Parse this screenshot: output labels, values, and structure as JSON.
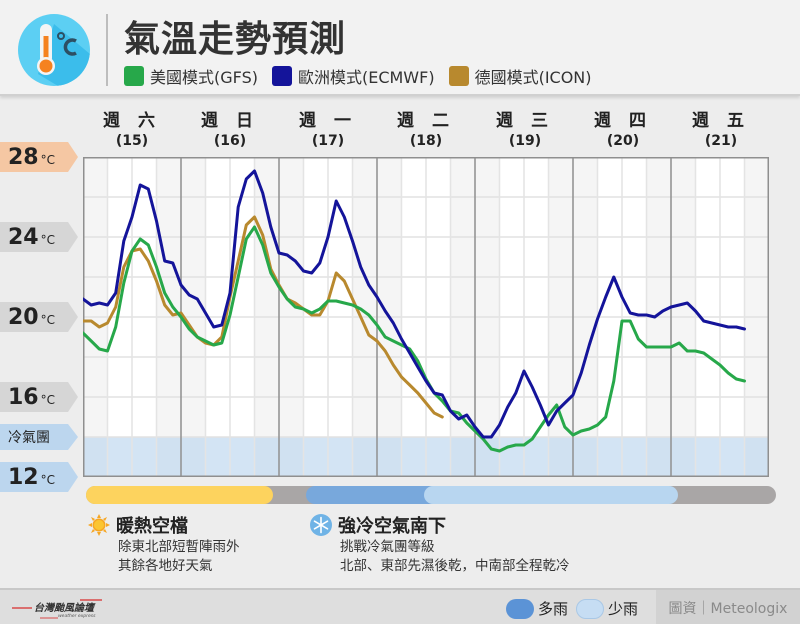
{
  "header": {
    "title": "氣溫走勢預測",
    "icon": "thermometer-celsius-icon",
    "legend": [
      {
        "label": "美國模式(GFS)",
        "color": "#27a84a"
      },
      {
        "label": "歐洲模式(ECMWF)",
        "color": "#14149a"
      },
      {
        "label": "德國模式(ICON)",
        "color": "#b8892e"
      }
    ]
  },
  "days": [
    {
      "name": "週 六",
      "num": "(15)"
    },
    {
      "name": "週 日",
      "num": "(16)"
    },
    {
      "name": "週 一",
      "num": "(17)"
    },
    {
      "name": "週 二",
      "num": "(18)"
    },
    {
      "name": "週 三",
      "num": "(19)"
    },
    {
      "name": "週 四",
      "num": "(20)"
    },
    {
      "name": "週 五",
      "num": "(21)"
    }
  ],
  "y_axis": [
    {
      "value": "28",
      "unit": "°C",
      "color": "#f5c7a3"
    },
    {
      "value": "24",
      "unit": "°C",
      "color": "#d6d6d6"
    },
    {
      "value": "20",
      "unit": "°C",
      "color": "#d6d6d6"
    },
    {
      "value": "16",
      "unit": "°C",
      "color": "#d6d6d6"
    },
    {
      "value": "冷氣團",
      "unit": "",
      "color": "#bcd6ee"
    },
    {
      "value": "12",
      "unit": "°C",
      "color": "#bcd6ee"
    }
  ],
  "chart_data": {
    "type": "line",
    "title": "氣溫走勢預測",
    "xlabel": "",
    "ylabel": "°C",
    "ylim": [
      12,
      28
    ],
    "y_ticks": [
      12,
      16,
      20,
      24,
      28
    ],
    "grid": true,
    "categories": [
      "週六(15)",
      "週日(16)",
      "週一(17)",
      "週二(18)",
      "週三(19)",
      "週四(20)",
      "週五(21)"
    ],
    "annotations": [
      {
        "label": "冷氣團",
        "range": [
          12,
          14
        ]
      }
    ],
    "x_unit": "hours from start of 週六(15), 24h per day, 168h total",
    "series": [
      {
        "name": "美國模式(GFS)",
        "color": "#27a84a",
        "points": [
          [
            0,
            19.2
          ],
          [
            2,
            18.8
          ],
          [
            4,
            18.4
          ],
          [
            6,
            18.3
          ],
          [
            8,
            19.5
          ],
          [
            10,
            21.7
          ],
          [
            12,
            23.3
          ],
          [
            14,
            23.9
          ],
          [
            16,
            23.6
          ],
          [
            18,
            22.5
          ],
          [
            20,
            21.2
          ],
          [
            22,
            20.5
          ],
          [
            24,
            20.0
          ],
          [
            26,
            19.4
          ],
          [
            28,
            19.0
          ],
          [
            30,
            18.8
          ],
          [
            32,
            18.6
          ],
          [
            34,
            18.7
          ],
          [
            36,
            20.1
          ],
          [
            38,
            22.0
          ],
          [
            40,
            23.9
          ],
          [
            42,
            24.5
          ],
          [
            44,
            23.6
          ],
          [
            46,
            22.2
          ],
          [
            48,
            21.5
          ],
          [
            50,
            20.9
          ],
          [
            52,
            20.5
          ],
          [
            54,
            20.4
          ],
          [
            56,
            20.2
          ],
          [
            58,
            20.4
          ],
          [
            60,
            20.8
          ],
          [
            62,
            20.8
          ],
          [
            64,
            20.7
          ],
          [
            66,
            20.6
          ],
          [
            68,
            20.4
          ],
          [
            70,
            20.1
          ],
          [
            72,
            19.6
          ],
          [
            74,
            19.0
          ],
          [
            76,
            18.8
          ],
          [
            78,
            18.6
          ],
          [
            80,
            18.4
          ],
          [
            82,
            17.8
          ],
          [
            84,
            16.9
          ],
          [
            86,
            16.2
          ],
          [
            88,
            15.8
          ],
          [
            90,
            15.3
          ],
          [
            92,
            15.2
          ],
          [
            94,
            14.7
          ],
          [
            96,
            14.3
          ],
          [
            98,
            13.9
          ],
          [
            100,
            13.4
          ],
          [
            102,
            13.3
          ],
          [
            104,
            13.5
          ],
          [
            106,
            13.6
          ],
          [
            108,
            13.6
          ],
          [
            110,
            13.9
          ],
          [
            112,
            14.5
          ],
          [
            114,
            15.1
          ],
          [
            116,
            15.6
          ],
          [
            118,
            14.5
          ],
          [
            120,
            14.1
          ],
          [
            122,
            14.3
          ],
          [
            124,
            14.4
          ],
          [
            126,
            14.6
          ],
          [
            128,
            15.0
          ],
          [
            130,
            16.8
          ],
          [
            132,
            19.8
          ],
          [
            134,
            19.8
          ],
          [
            136,
            18.9
          ],
          [
            138,
            18.5
          ],
          [
            140,
            18.5
          ],
          [
            142,
            18.5
          ],
          [
            144,
            18.5
          ],
          [
            146,
            18.7
          ],
          [
            148,
            18.3
          ],
          [
            150,
            18.3
          ],
          [
            152,
            18.2
          ],
          [
            154,
            17.9
          ],
          [
            156,
            17.6
          ],
          [
            158,
            17.2
          ],
          [
            160,
            16.9
          ],
          [
            162,
            16.8
          ]
        ]
      },
      {
        "name": "歐洲模式(ECMWF)",
        "color": "#14149a",
        "points": [
          [
            0,
            20.9
          ],
          [
            2,
            20.6
          ],
          [
            4,
            20.7
          ],
          [
            6,
            20.6
          ],
          [
            8,
            21.2
          ],
          [
            10,
            23.8
          ],
          [
            12,
            25.0
          ],
          [
            14,
            26.6
          ],
          [
            16,
            26.4
          ],
          [
            18,
            24.8
          ],
          [
            20,
            22.8
          ],
          [
            22,
            22.7
          ],
          [
            24,
            21.6
          ],
          [
            26,
            21.1
          ],
          [
            28,
            20.9
          ],
          [
            30,
            20.2
          ],
          [
            32,
            19.5
          ],
          [
            34,
            19.6
          ],
          [
            36,
            21.2
          ],
          [
            38,
            25.5
          ],
          [
            40,
            26.9
          ],
          [
            42,
            27.3
          ],
          [
            44,
            26.2
          ],
          [
            46,
            24.5
          ],
          [
            48,
            23.2
          ],
          [
            50,
            23.1
          ],
          [
            52,
            22.8
          ],
          [
            54,
            22.3
          ],
          [
            56,
            22.2
          ],
          [
            58,
            22.7
          ],
          [
            60,
            24.0
          ],
          [
            62,
            25.8
          ],
          [
            64,
            25.0
          ],
          [
            66,
            23.8
          ],
          [
            68,
            22.5
          ],
          [
            70,
            21.6
          ],
          [
            72,
            21.0
          ],
          [
            74,
            20.3
          ],
          [
            76,
            19.7
          ],
          [
            78,
            18.9
          ],
          [
            80,
            18.2
          ],
          [
            82,
            17.5
          ],
          [
            84,
            16.8
          ],
          [
            86,
            16.2
          ],
          [
            88,
            16.1
          ],
          [
            90,
            15.3
          ],
          [
            92,
            14.9
          ],
          [
            94,
            15.1
          ],
          [
            96,
            14.5
          ],
          [
            98,
            14.0
          ],
          [
            100,
            14.0
          ],
          [
            102,
            14.6
          ],
          [
            104,
            15.5
          ],
          [
            106,
            16.2
          ],
          [
            108,
            17.3
          ],
          [
            110,
            16.5
          ],
          [
            112,
            15.6
          ],
          [
            114,
            14.6
          ],
          [
            116,
            15.3
          ],
          [
            118,
            15.7
          ],
          [
            120,
            16.1
          ],
          [
            122,
            17.2
          ],
          [
            124,
            18.6
          ],
          [
            126,
            19.9
          ],
          [
            128,
            21.0
          ],
          [
            130,
            22.0
          ],
          [
            132,
            21.0
          ],
          [
            134,
            20.2
          ],
          [
            136,
            20.1
          ],
          [
            138,
            20.1
          ],
          [
            140,
            20.0
          ],
          [
            142,
            20.3
          ],
          [
            144,
            20.5
          ],
          [
            146,
            20.6
          ],
          [
            148,
            20.7
          ],
          [
            150,
            20.3
          ],
          [
            152,
            19.8
          ],
          [
            154,
            19.7
          ],
          [
            156,
            19.6
          ],
          [
            158,
            19.5
          ],
          [
            160,
            19.5
          ],
          [
            162,
            19.4
          ]
        ]
      },
      {
        "name": "德國模式(ICON)",
        "color": "#b8892e",
        "points": [
          [
            0,
            19.8
          ],
          [
            2,
            19.8
          ],
          [
            4,
            19.5
          ],
          [
            6,
            19.7
          ],
          [
            8,
            20.5
          ],
          [
            10,
            22.5
          ],
          [
            12,
            23.3
          ],
          [
            14,
            23.4
          ],
          [
            16,
            22.8
          ],
          [
            18,
            21.8
          ],
          [
            20,
            20.6
          ],
          [
            22,
            20.1
          ],
          [
            24,
            20.2
          ],
          [
            26,
            19.6
          ],
          [
            28,
            19.0
          ],
          [
            30,
            18.7
          ],
          [
            32,
            18.6
          ],
          [
            34,
            19.0
          ],
          [
            36,
            21.0
          ],
          [
            38,
            22.8
          ],
          [
            40,
            24.6
          ],
          [
            42,
            25.0
          ],
          [
            44,
            24.1
          ],
          [
            46,
            22.4
          ],
          [
            48,
            21.6
          ],
          [
            50,
            20.9
          ],
          [
            52,
            20.7
          ],
          [
            54,
            20.4
          ],
          [
            56,
            20.1
          ],
          [
            58,
            20.1
          ],
          [
            60,
            20.8
          ],
          [
            62,
            22.2
          ],
          [
            64,
            21.8
          ],
          [
            66,
            20.9
          ],
          [
            68,
            20.0
          ],
          [
            70,
            19.1
          ],
          [
            72,
            18.8
          ],
          [
            74,
            18.3
          ],
          [
            76,
            17.6
          ],
          [
            78,
            17.0
          ],
          [
            80,
            16.6
          ],
          [
            82,
            16.2
          ],
          [
            84,
            15.7
          ],
          [
            86,
            15.2
          ],
          [
            88,
            15.0
          ]
        ]
      }
    ]
  },
  "weather_bar": {
    "segments": [
      {
        "label": "warm",
        "color": "#fdd35e"
      },
      {
        "label": "多雨",
        "color": "#78a8dc"
      },
      {
        "label": "少雨",
        "color": "#b8d6f0"
      }
    ]
  },
  "notes": [
    {
      "icon": "sun-icon",
      "title": "暖熱空檔",
      "lines": [
        "除東北部短暫陣雨外",
        "其餘各地好天氣"
      ]
    },
    {
      "icon": "snowflake-icon",
      "title": "強冷空氣南下",
      "lines": [
        "挑戰冷氣團等級",
        "北部、東部先濕後乾，中南部全程乾冷"
      ]
    }
  ],
  "footer": {
    "logo_text": "台灣颱風論壇",
    "logo_sub": "weather express",
    "rain_legend": [
      {
        "label": "多雨",
        "color": "#5b93d6"
      },
      {
        "label": "少雨",
        "color": "#c6ddf3"
      }
    ],
    "credit": "圖資｜Meteologix"
  }
}
